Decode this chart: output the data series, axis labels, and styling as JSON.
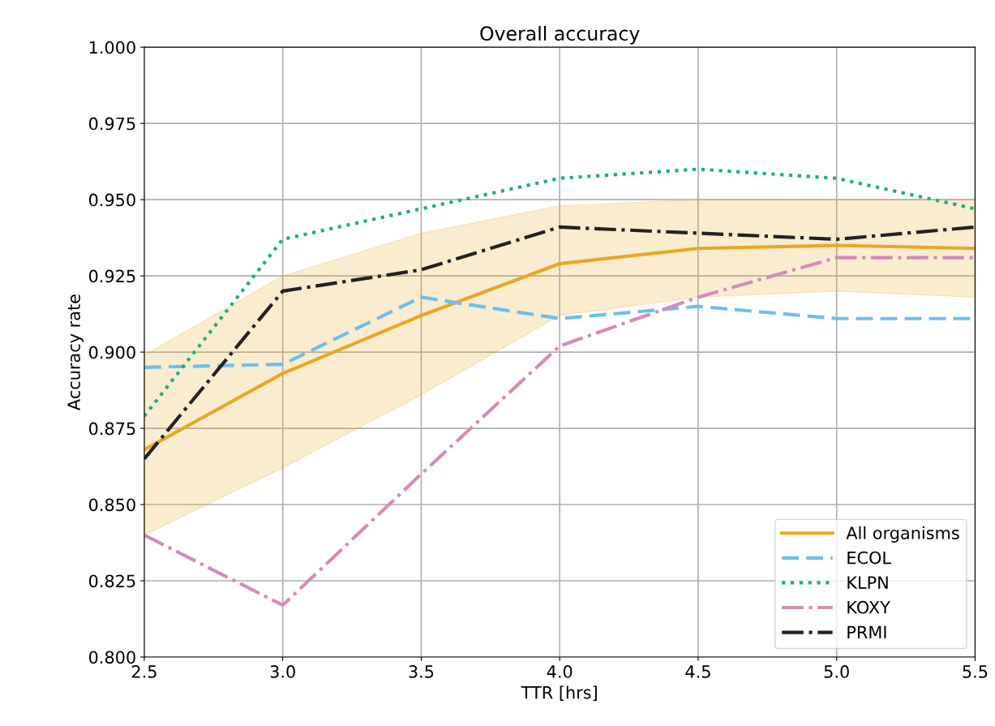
{
  "chart_data": {
    "type": "line",
    "title": "Overall accuracy",
    "xlabel": "TTR [hrs]",
    "ylabel": "Accuracy rate",
    "x": [
      2.5,
      3.0,
      3.5,
      4.0,
      4.5,
      5.0,
      5.5
    ],
    "series": [
      {
        "name": "All organisms",
        "color": "#e8a825",
        "line_style": "solid",
        "values": [
          0.868,
          0.893,
          0.912,
          0.929,
          0.934,
          0.935,
          0.934
        ],
        "lower": [
          0.84,
          0.862,
          0.886,
          0.912,
          0.918,
          0.92,
          0.918
        ],
        "upper": [
          0.899,
          0.925,
          0.939,
          0.948,
          0.95,
          0.95,
          0.95
        ]
      },
      {
        "name": "ECOL",
        "color": "#6cbfee",
        "line_style": "dashed",
        "values": [
          0.895,
          0.896,
          0.918,
          0.911,
          0.915,
          0.911,
          0.911
        ]
      },
      {
        "name": "KLPN",
        "color": "#1fae7a",
        "line_style": "dotted",
        "values": [
          0.879,
          0.937,
          0.947,
          0.957,
          0.96,
          0.957,
          0.947
        ]
      },
      {
        "name": "KOXY",
        "color": "#d48cb8",
        "line_style": "dashdot",
        "values": [
          0.84,
          0.817,
          0.86,
          0.902,
          0.918,
          0.931,
          0.931
        ]
      },
      {
        "name": "PRMI",
        "color": "#222222",
        "line_style": "dashdot",
        "values": [
          0.865,
          0.92,
          0.927,
          0.941,
          0.939,
          0.937,
          0.941
        ]
      }
    ],
    "xlim": [
      2.5,
      5.5
    ],
    "ylim": [
      0.8,
      1.0
    ],
    "xticks": [
      2.5,
      {
        "value": 3,
        "label": "3.0"
      },
      3.5,
      {
        "value": 4,
        "label": "4.0"
      },
      4.5,
      {
        "value": 5,
        "label": "5.0"
      },
      5.5
    ],
    "yticks": [
      {
        "value": 0.8,
        "label": "0.800"
      },
      {
        "value": 0.825,
        "label": "0.825"
      },
      {
        "value": 0.85,
        "label": "0.850"
      },
      {
        "value": 0.875,
        "label": "0.875"
      },
      {
        "value": 0.9,
        "label": "0.900"
      },
      {
        "value": 0.925,
        "label": "0.925"
      },
      {
        "value": 0.95,
        "label": "0.950"
      },
      {
        "value": 0.975,
        "label": "0.975"
      },
      {
        "value": 1.0,
        "label": "1.000"
      }
    ],
    "grid": true,
    "legend": "lower right",
    "marker": "none"
  }
}
